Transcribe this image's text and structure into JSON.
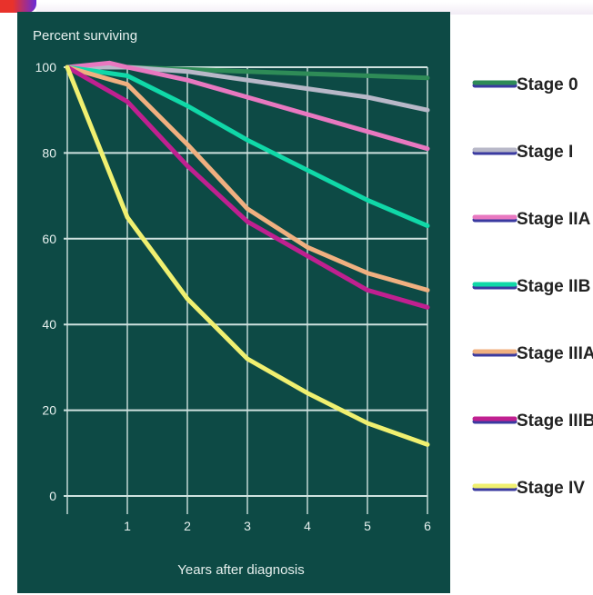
{
  "chart_data": {
    "type": "line",
    "ylabel": "Percent surviving",
    "xlabel": "Years after diagnosis",
    "xlim": [
      0,
      6
    ],
    "ylim": [
      0,
      100
    ],
    "x_ticks": [
      1,
      2,
      3,
      4,
      5,
      6
    ],
    "y_ticks": [
      0,
      20,
      40,
      60,
      80,
      100
    ],
    "grid": true,
    "legend_position": "right",
    "panel_color": "#0d4a45",
    "series": [
      {
        "name": "Stage 0",
        "color": "#2e8b57",
        "x": [
          0,
          1,
          2,
          3,
          4,
          5,
          6
        ],
        "y": [
          100,
          100,
          99.5,
          99,
          98.5,
          98,
          97.5
        ]
      },
      {
        "name": "Stage I",
        "color": "#b8b8c8",
        "x": [
          0,
          1,
          2,
          3,
          4,
          5,
          6
        ],
        "y": [
          100,
          100,
          99,
          97,
          95,
          93,
          90
        ]
      },
      {
        "name": "Stage IIA",
        "color": "#e878c0",
        "x": [
          0,
          0.7,
          1,
          2,
          3,
          4,
          5,
          6
        ],
        "y": [
          100,
          101,
          100,
          97,
          93,
          89,
          85,
          81
        ]
      },
      {
        "name": "Stage IIB",
        "color": "#10d8a8",
        "x": [
          0,
          1,
          2,
          3,
          4,
          5,
          6
        ],
        "y": [
          100,
          98,
          91,
          83,
          76,
          69,
          63
        ]
      },
      {
        "name": "Stage IIIA",
        "color": "#f0b080",
        "x": [
          0,
          1,
          2,
          3,
          4,
          5,
          6
        ],
        "y": [
          100,
          96,
          82,
          67,
          58,
          52,
          48
        ]
      },
      {
        "name": "Stage IIIB",
        "color": "#c02090",
        "x": [
          0,
          1,
          2,
          3,
          4,
          5,
          6
        ],
        "y": [
          100,
          92,
          77,
          64,
          56,
          48,
          44
        ]
      },
      {
        "name": "Stage IV",
        "color": "#f0f070",
        "x": [
          0,
          1,
          2,
          3,
          4,
          5,
          6
        ],
        "y": [
          100,
          65,
          46,
          32,
          24,
          17,
          12
        ]
      }
    ]
  }
}
